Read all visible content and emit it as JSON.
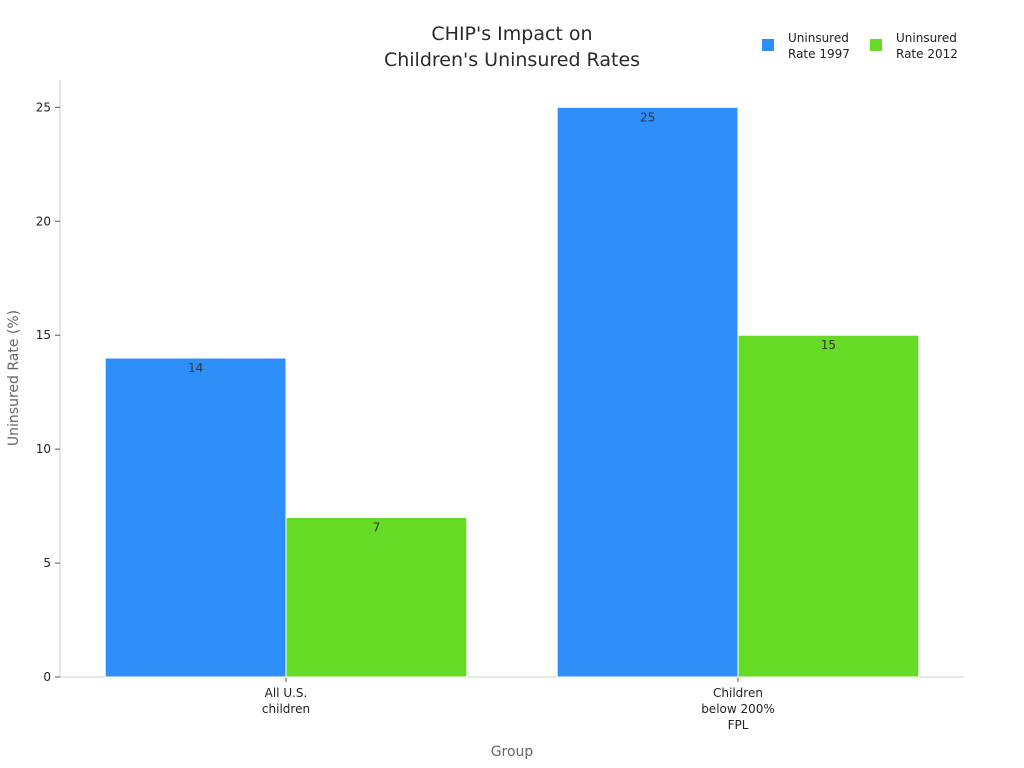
{
  "chart_data": {
    "type": "bar",
    "title_lines": [
      "CHIP's Impact on",
      "Children's Uninsured Rates"
    ],
    "xlabel": "Group",
    "ylabel": "Uninsured Rate (%)",
    "ylim": [
      0,
      26.2
    ],
    "yticks": [
      0,
      5,
      10,
      15,
      20,
      25
    ],
    "categories": [
      {
        "lines": [
          "All U.S.",
          "children"
        ]
      },
      {
        "lines": [
          "Children",
          "below 200%",
          "FPL"
        ]
      }
    ],
    "series": [
      {
        "name": "Uninsured Rate 1997",
        "legend_lines": [
          "Uninsured",
          "Rate 1997"
        ],
        "color": "#2f8ff8",
        "values": [
          14,
          25
        ]
      },
      {
        "name": "Uninsured Rate 2012",
        "legend_lines": [
          "Uninsured",
          "Rate 2012"
        ],
        "color": "#66db25",
        "values": [
          7,
          15
        ]
      }
    ],
    "legend_position": "top-right",
    "grid": false
  }
}
